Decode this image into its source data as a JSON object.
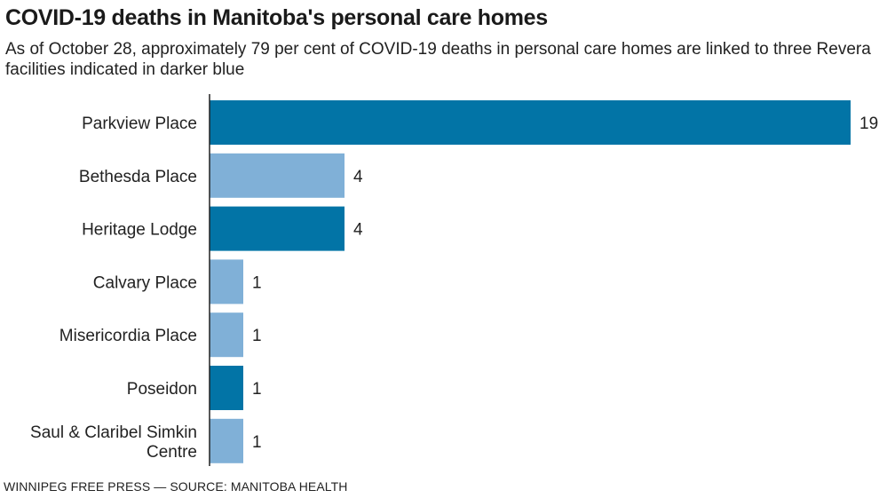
{
  "chart_data": {
    "type": "bar",
    "orientation": "horizontal",
    "title": "COVID-19 deaths in Manitoba's personal care homes",
    "subtitle": "As of October 28, approximately 79 per cent of COVID-19 deaths in personal care homes are linked to three Revera facilities indicated in darker blue",
    "categories": [
      "Parkview Place",
      "Bethesda Place",
      "Heritage Lodge",
      "Calvary Place",
      "Misericordia Place",
      "Poseidon",
      "Saul & Claribel Simkin Centre"
    ],
    "category_lines": [
      [
        "Parkview Place"
      ],
      [
        "Bethesda Place"
      ],
      [
        "Heritage Lodge"
      ],
      [
        "Calvary Place"
      ],
      [
        "Misericordia Place"
      ],
      [
        "Poseidon"
      ],
      [
        "Saul & Claribel Simkin",
        "Centre"
      ]
    ],
    "values": [
      19,
      4,
      4,
      1,
      1,
      1,
      1
    ],
    "revera": [
      true,
      false,
      true,
      false,
      false,
      true,
      false
    ],
    "xlim": [
      0,
      19
    ],
    "grid": false,
    "colors": {
      "revera": "#0274a6",
      "other": "#80b0d7",
      "axis": "#222222"
    },
    "source": "WINNIPEG FREE PRESS — SOURCE: MANITOBA HEALTH"
  }
}
